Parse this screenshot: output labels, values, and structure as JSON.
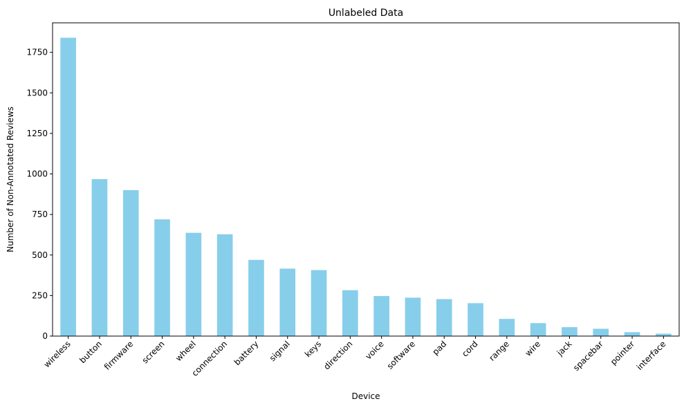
{
  "chart_data": {
    "type": "bar",
    "title": "Unlabeled Data",
    "xlabel": "Device",
    "ylabel": "Number of Non-Annotated Reviews",
    "categories": [
      "wireless",
      "button",
      "firmware",
      "screen",
      "wheel",
      "connection",
      "battery",
      "signal",
      "keys",
      "direction",
      "voice",
      "software",
      "pad",
      "cord",
      "range",
      "wire",
      "jack",
      "spacebar",
      "pointer",
      "interface"
    ],
    "values": [
      1840,
      968,
      900,
      720,
      637,
      628,
      470,
      416,
      407,
      283,
      247,
      237,
      228,
      203,
      106,
      80,
      55,
      45,
      24,
      15
    ],
    "ylim": [
      0,
      1932
    ],
    "yticks": [
      0,
      250,
      500,
      750,
      1000,
      1250,
      1500,
      1750
    ],
    "bar_color": "#87ceeb",
    "grid": false,
    "legend": "none"
  }
}
